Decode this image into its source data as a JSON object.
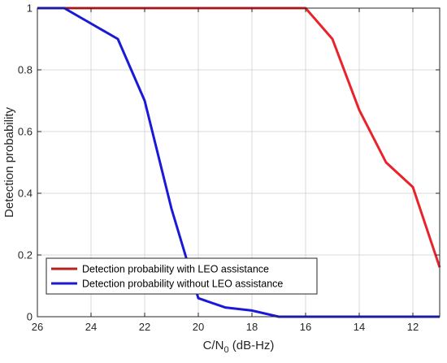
{
  "chart_data": {
    "type": "line",
    "title": "",
    "xlabel": "C/N",
    "xlabel_sub": "0",
    "xlabel_unit": " (dB-Hz)",
    "ylabel": "Detection probability",
    "xlim": [
      26,
      11
    ],
    "ylim": [
      0,
      1
    ],
    "x_reversed": true,
    "x_ticks": [
      26,
      24,
      22,
      20,
      18,
      16,
      14,
      12
    ],
    "x_tick_labels": [
      "26",
      "24",
      "22",
      "20",
      "18",
      "16",
      "14",
      "12"
    ],
    "y_ticks": [
      0,
      0.2,
      0.4,
      0.6,
      0.8,
      1
    ],
    "y_tick_labels": [
      "0",
      "0.2",
      "0.4",
      "0.6",
      "0.8",
      "1"
    ],
    "grid": true,
    "legend_position": "bottom-left",
    "series": [
      {
        "name": "Detection probability with LEO assistance",
        "color": "#e8232b",
        "x": [
          26,
          25,
          24,
          23,
          22,
          21,
          20,
          19,
          18,
          17,
          16,
          15,
          14,
          13,
          12,
          11
        ],
        "y": [
          1,
          1,
          1,
          1,
          1,
          1,
          1,
          1,
          1,
          1,
          1,
          0.9,
          0.67,
          0.5,
          0.42,
          0.16
        ]
      },
      {
        "name": "Detection probability without LEO assistance",
        "color": "#1a1ad6",
        "x": [
          26,
          25,
          24,
          23,
          22,
          21,
          20,
          19,
          18,
          17,
          16,
          15,
          14,
          13,
          12,
          11
        ],
        "y": [
          1,
          1,
          0.95,
          0.9,
          0.7,
          0.35,
          0.06,
          0.03,
          0.02,
          0,
          0,
          0,
          0,
          0,
          0,
          0
        ]
      }
    ],
    "legend_colors": [
      "#b8211e",
      "#1a1ad6"
    ]
  }
}
